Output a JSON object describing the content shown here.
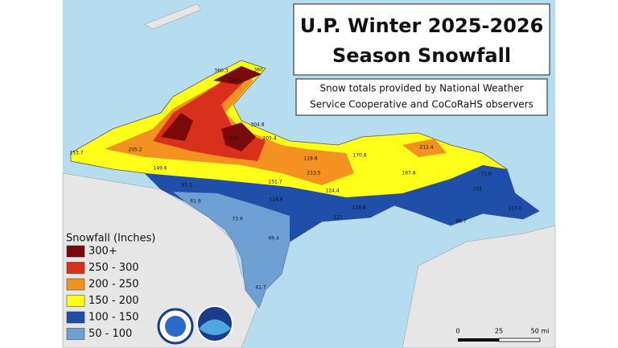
{
  "title": {
    "line1": "U.P. Winter 2025-2026",
    "line2": "Season Snowfall"
  },
  "subtitle": {
    "line1": "Snow totals provided by National Weather",
    "line2": "Service Cooperative and CoCoRaHS observers"
  },
  "legend": {
    "title": "Snowfall (Inches)",
    "items": [
      {
        "label": "300+",
        "color": "#7a0a0a"
      },
      {
        "label": "250 - 300",
        "color": "#d9301c"
      },
      {
        "label": "200 - 250",
        "color": "#f39221"
      },
      {
        "label": "150 - 200",
        "color": "#ffff1a"
      },
      {
        "label": "100 - 150",
        "color": "#1f4fa8"
      },
      {
        "label": "50 - 100",
        "color": "#6fa0d4"
      }
    ]
  },
  "scale": {
    "labels": [
      "0",
      "25",
      "50 mi"
    ]
  },
  "stations": [
    "360.3",
    "360",
    "234.5",
    "328",
    "304.8",
    "205.4",
    "205.2",
    "153.7",
    "149.6",
    "97.3",
    "61.9",
    "73.9",
    "69.4",
    "114.8",
    "118.8",
    "121",
    "124.4",
    "213.5",
    "119.8",
    "170.8",
    "167.8",
    "212.4",
    "72.6",
    "103",
    "117.6",
    "96.7",
    "151.7",
    "41.7"
  ]
}
